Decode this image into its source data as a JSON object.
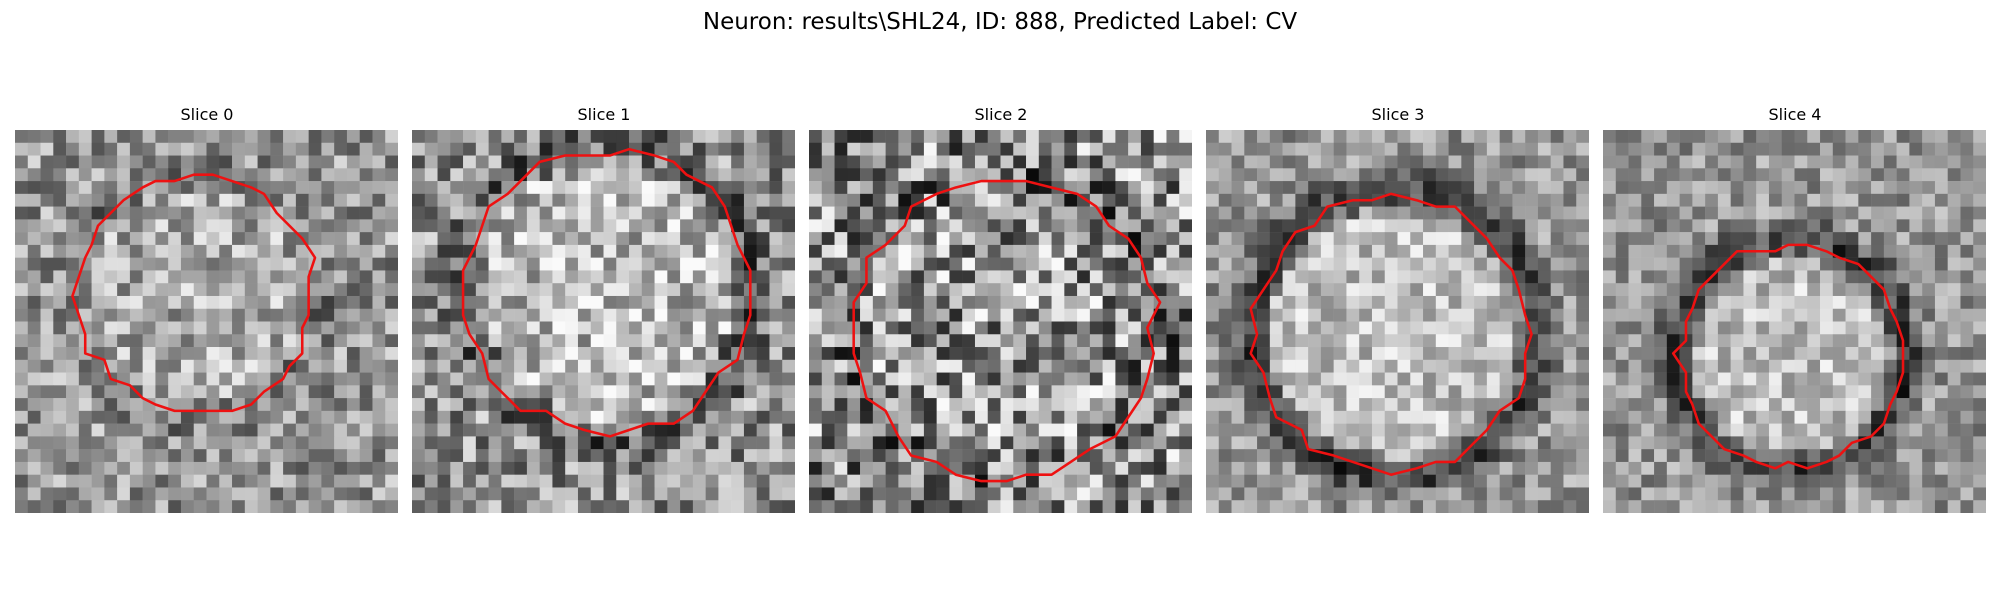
{
  "figure": {
    "title": "Neuron: results\\SHL24, ID: 888, Predicted Label: CV"
  },
  "slices": [
    {
      "label": "Slice 0",
      "seed": 11,
      "center": [
        0.47,
        0.43
      ],
      "r": 0.31,
      "texture": "soft",
      "ring": "weak"
    },
    {
      "label": "Slice 1",
      "seed": 23,
      "center": [
        0.51,
        0.42
      ],
      "r": 0.37,
      "texture": "bright",
      "ring": "medium"
    },
    {
      "label": "Slice 2",
      "seed": 37,
      "center": [
        0.51,
        0.52
      ],
      "r": 0.39,
      "texture": "noisy",
      "ring": "weak"
    },
    {
      "label": "Slice 3",
      "seed": 41,
      "center": [
        0.49,
        0.53
      ],
      "r": 0.36,
      "texture": "smooth",
      "ring": "dark"
    },
    {
      "label": "Slice 4",
      "seed": 53,
      "center": [
        0.49,
        0.59
      ],
      "r": 0.29,
      "texture": "smooth",
      "ring": "dark"
    }
  ],
  "colors": {
    "contour": "#ee1111",
    "background": "#ffffff"
  }
}
